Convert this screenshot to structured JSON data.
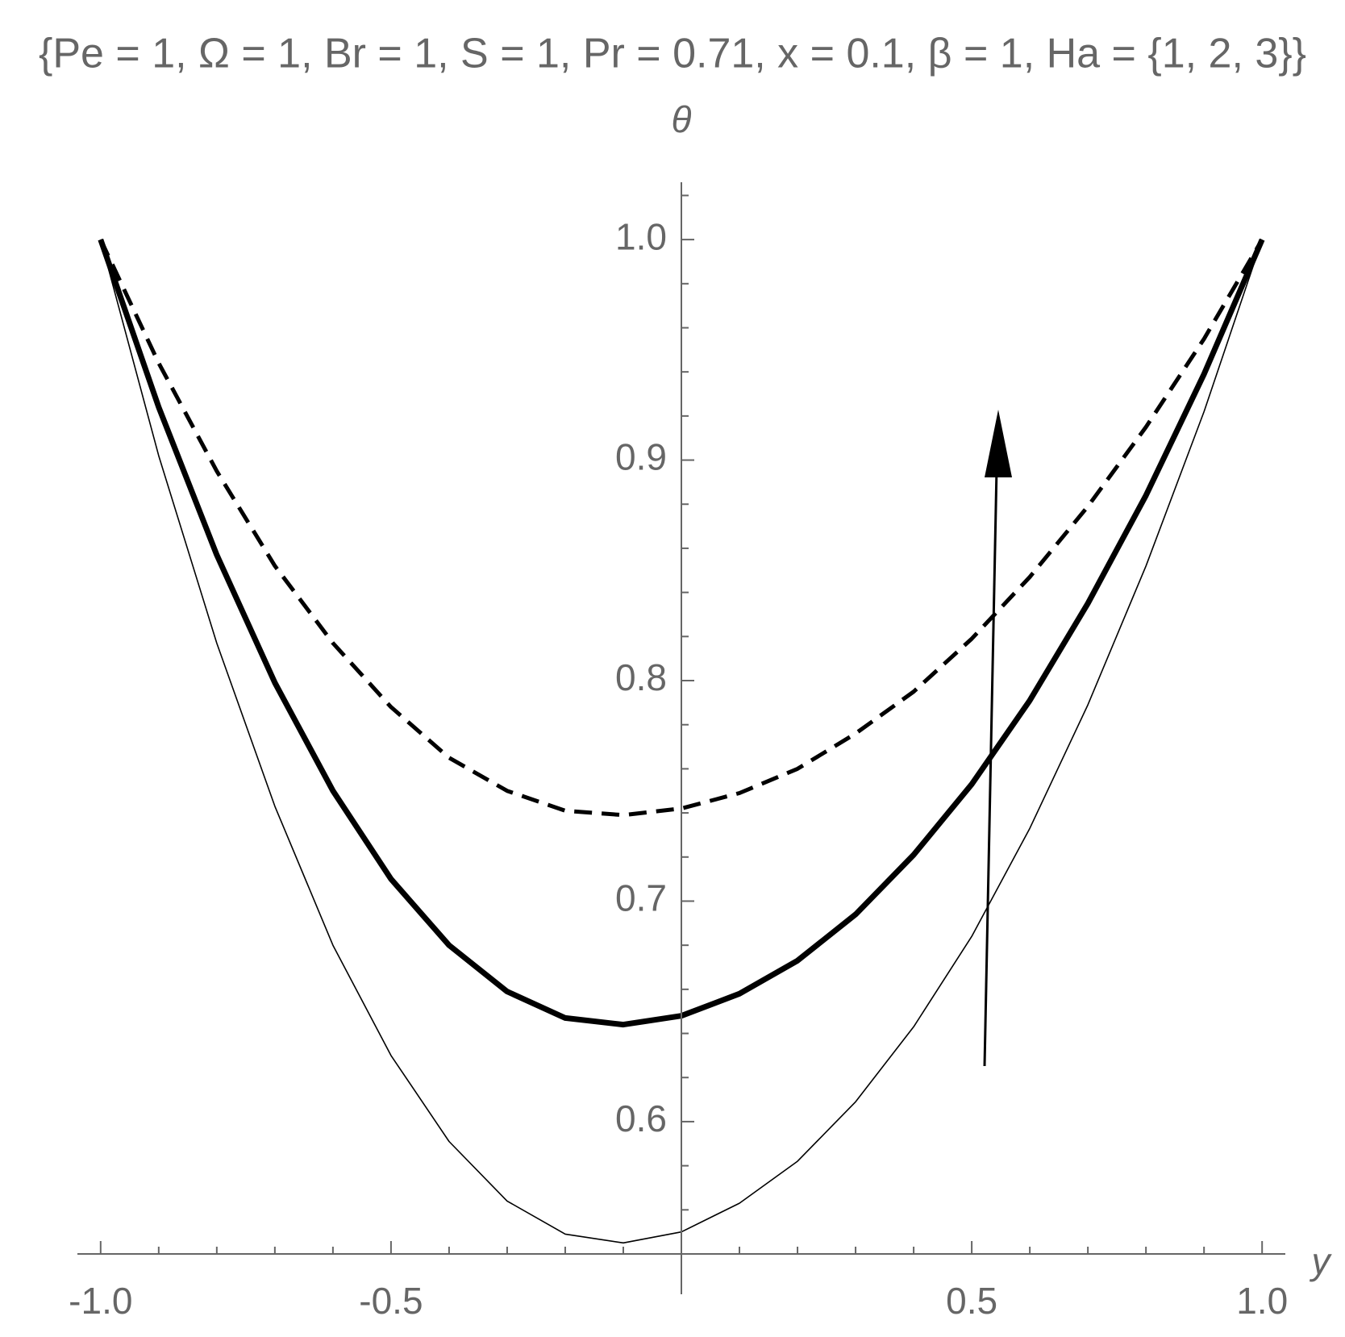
{
  "chart_data": {
    "type": "line",
    "title": "{Pe = 1, Ω = 1, Br = 1, S = 1, Pr = 0.71, x = 0.1, β = 1, Ha = {1, 2, 3}}",
    "x_label": "y",
    "y_label": "θ",
    "x": [
      -1.0,
      -0.9,
      -0.8,
      -0.7,
      -0.6,
      -0.5,
      -0.4,
      -0.3,
      -0.2,
      -0.1,
      0,
      0.1,
      0.2,
      0.3,
      0.4,
      0.5,
      0.6,
      0.7,
      0.8,
      0.9,
      1.0
    ],
    "series": [
      {
        "color": "#000000",
        "width": 1.6,
        "dash": false,
        "values": [
          1.0,
          0.902,
          0.817,
          0.743,
          0.68,
          0.63,
          0.591,
          0.564,
          0.549,
          0.545,
          0.55,
          0.563,
          0.582,
          0.609,
          0.643,
          0.684,
          0.733,
          0.789,
          0.852,
          0.922,
          1.0
        ]
      },
      {
        "color": "#000000",
        "width": 7,
        "dash": false,
        "values": [
          1.0,
          0.924,
          0.857,
          0.799,
          0.75,
          0.71,
          0.68,
          0.659,
          0.647,
          0.644,
          0.648,
          0.658,
          0.673,
          0.694,
          0.721,
          0.753,
          0.791,
          0.835,
          0.884,
          0.939,
          1.0
        ]
      },
      {
        "color": "#000000",
        "width": 5,
        "dash": true,
        "values": [
          1.0,
          0.944,
          0.895,
          0.852,
          0.817,
          0.788,
          0.765,
          0.75,
          0.741,
          0.739,
          0.742,
          0.749,
          0.76,
          0.776,
          0.795,
          0.819,
          0.847,
          0.879,
          0.915,
          0.955,
          1.0
        ]
      }
    ],
    "xlim": [
      -1.04,
      1.04
    ],
    "ylim": [
      0.54,
      1.026
    ],
    "xticks": [
      {
        "value": -1,
        "label": "-1.0"
      },
      -0.5,
      0.5,
      {
        "value": 1,
        "label": "1.0"
      }
    ],
    "xminorticks": [
      -0.9,
      -0.8,
      -0.7,
      -0.6,
      -0.4,
      -0.3,
      -0.2,
      -0.1,
      0.1,
      0.2,
      0.3,
      0.4,
      0.6,
      0.7,
      0.8,
      0.9
    ],
    "yticks": [
      0.6,
      0.7,
      0.8,
      0.9,
      {
        "value": 1,
        "label": "1.0"
      }
    ],
    "yminorticks": [
      0.56,
      0.58,
      0.62,
      0.64,
      0.66,
      0.68,
      0.72,
      0.74,
      0.76,
      0.78,
      0.82,
      0.84,
      0.86,
      0.88,
      0.92,
      0.94,
      0.96,
      0.98,
      1.02
    ]
  }
}
